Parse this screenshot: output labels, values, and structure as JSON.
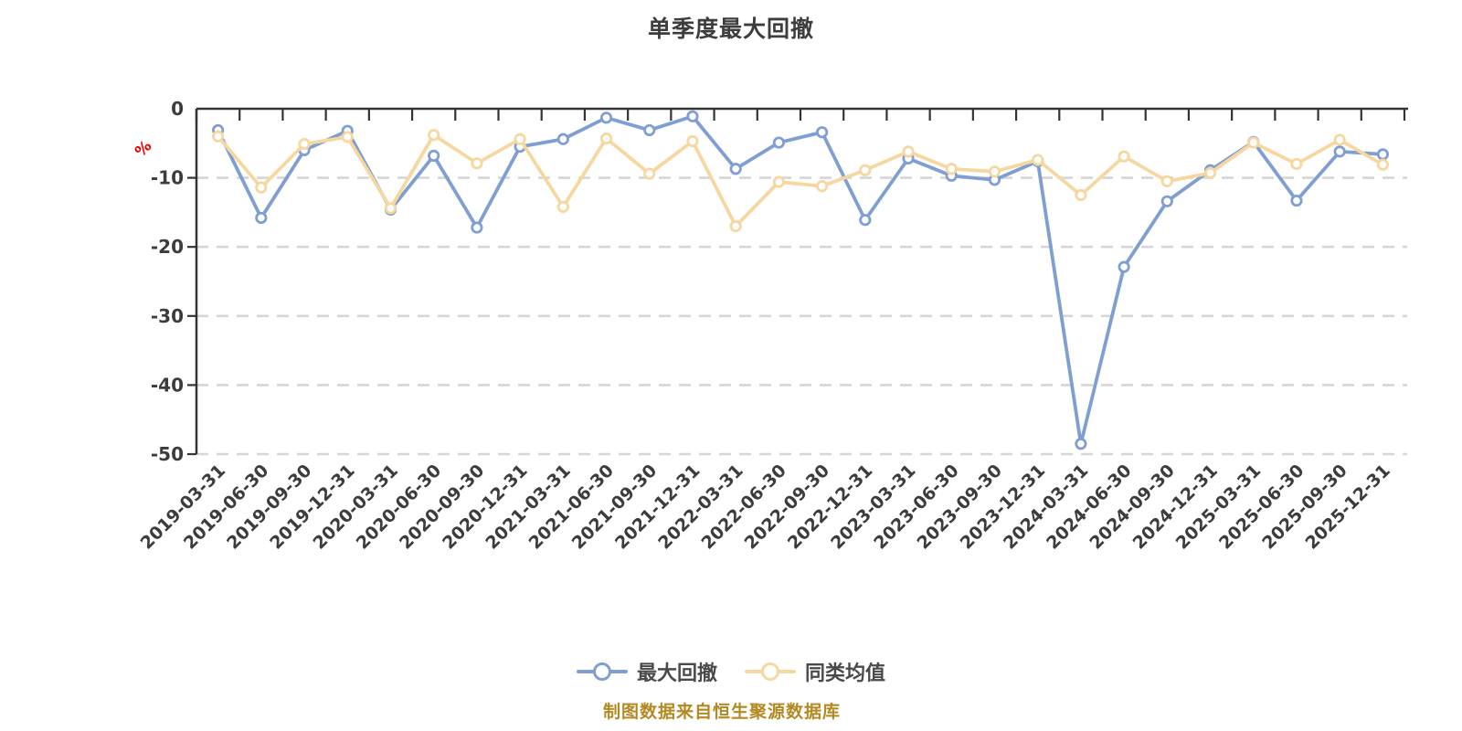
{
  "title": "单季度最大回撤",
  "y_axis_unit": "%",
  "caption": "制图数据来自恒生聚源数据库",
  "colors": {
    "series_drawdown": "#7f9fd3",
    "series_average": "#f6d7a0",
    "axis_line": "#333333",
    "gridline": "#d6d6d6",
    "tick_label": "#3c3c3c",
    "title_text": "#3d3d3d",
    "unit_label": "#e60000",
    "legend_text": "#4a4a4a",
    "caption_text": "#b58921",
    "marker_fill": "#ffffff"
  },
  "legend": [
    {
      "label": "最大回撤",
      "color": "#7f9fd3"
    },
    {
      "label": "同类均值",
      "color": "#f6d7a0"
    }
  ],
  "chart_data": {
    "type": "line",
    "title": "单季度最大回撤",
    "xlabel": "",
    "ylabel": "%",
    "ylim": [
      -50,
      0
    ],
    "yticks": [
      0,
      -10,
      -20,
      -30,
      -40,
      -50
    ],
    "grid": "horizontal-dashed",
    "legend_position": "bottom",
    "categories": [
      "2019-03-31",
      "2019-06-30",
      "2019-09-30",
      "2019-12-31",
      "2020-03-31",
      "2020-06-30",
      "2020-09-30",
      "2020-12-31",
      "2021-03-31",
      "2021-06-30",
      "2021-09-30",
      "2021-12-31",
      "2022-03-31",
      "2022-06-30",
      "2022-09-30",
      "2022-12-31",
      "2023-03-31",
      "2023-06-30",
      "2023-09-30",
      "2023-12-31",
      "2024-03-31",
      "2024-06-30",
      "2024-09-30",
      "2024-12-31",
      "2025-03-31",
      "2025-06-30",
      "2025-09-30",
      "2025-12-31"
    ],
    "series": [
      {
        "name": "最大回撤",
        "color": "#7f9fd3",
        "values": [
          -3.1,
          -15.8,
          -6.0,
          -3.2,
          -14.6,
          -6.8,
          -17.2,
          -5.5,
          -4.4,
          -1.3,
          -3.1,
          -1.1,
          -8.7,
          -4.9,
          -3.4,
          -16.1,
          -7.2,
          -9.7,
          -10.3,
          -7.6,
          -48.5,
          -22.9,
          -13.4,
          -8.9,
          -4.8,
          -13.3,
          -6.2,
          -6.6
        ]
      },
      {
        "name": "同类均值",
        "color": "#f6d7a0",
        "values": [
          -4.0,
          -11.4,
          -5.1,
          -4.1,
          -14.4,
          -3.8,
          -7.9,
          -4.4,
          -14.2,
          -4.3,
          -9.4,
          -4.7,
          -17.0,
          -10.6,
          -11.2,
          -8.9,
          -6.2,
          -8.7,
          -9.1,
          -7.4,
          -12.5,
          -6.9,
          -10.5,
          -9.3,
          -4.9,
          -8.0,
          -4.5,
          -8.1
        ]
      }
    ]
  }
}
